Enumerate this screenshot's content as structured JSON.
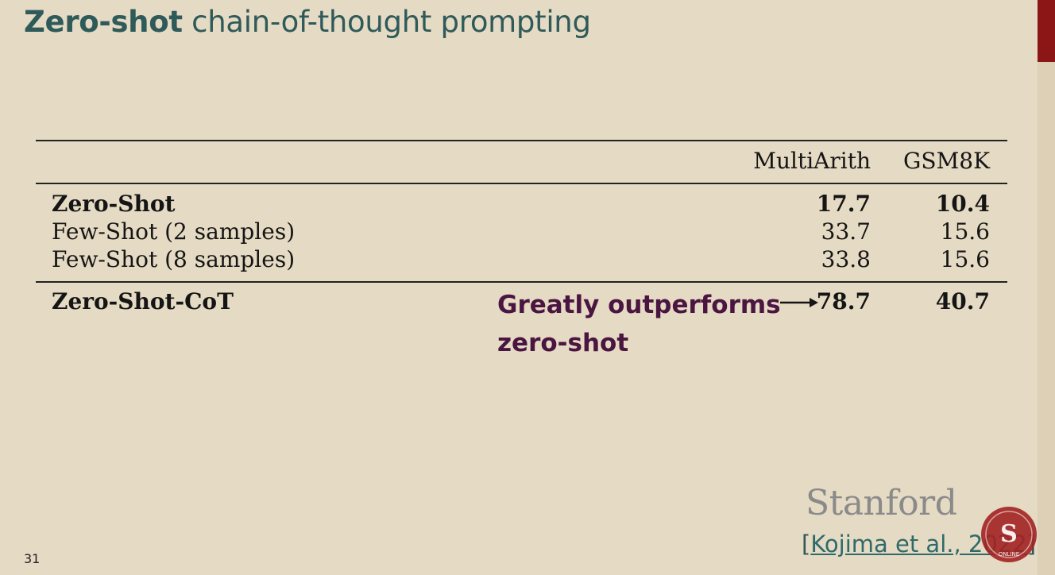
{
  "title": {
    "bold_part": "Zero-shot",
    "rest": " chain-of-thought prompting"
  },
  "table": {
    "columns": [
      "MultiArith",
      "GSM8K"
    ],
    "rows": [
      {
        "label": "Zero-Shot",
        "multiarith": "17.7",
        "gsm8k": "10.4",
        "bold": true
      },
      {
        "label": "Few-Shot (2 samples)",
        "multiarith": "33.7",
        "gsm8k": "15.6",
        "bold": false
      },
      {
        "label": "Few-Shot (8 samples)",
        "multiarith": "33.8",
        "gsm8k": "15.6",
        "bold": false
      },
      {
        "label": "Zero-Shot-CoT",
        "multiarith": "78.7",
        "gsm8k": "40.7",
        "bold": true
      }
    ]
  },
  "callout": {
    "line1": "Greatly outperforms",
    "line2": "zero-shot"
  },
  "branding": {
    "wordmark": "Stanford",
    "badge_letter": "S",
    "badge_text": "ONLINE",
    "accent_color": "#8c1515"
  },
  "citation": {
    "open": "[",
    "link_text": "Kojima et al., 2022",
    "close": "]"
  },
  "page_number": "31"
}
